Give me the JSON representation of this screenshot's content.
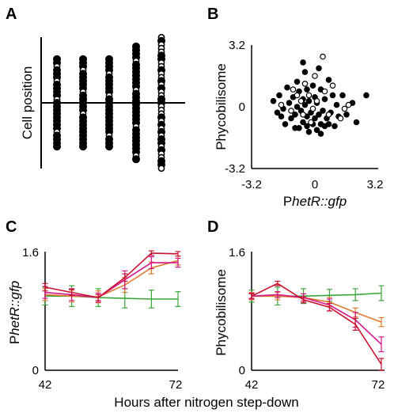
{
  "panels": {
    "a": {
      "letter": "A"
    },
    "b": {
      "letter": "B"
    },
    "c": {
      "letter": "C"
    },
    "d": {
      "letter": "D"
    }
  },
  "shared_xlabel": "Hours after nitrogen step-down",
  "colors": {
    "red": "#c8102e",
    "orange": "#e07a2e",
    "magenta": "#d6168a",
    "green": "#3aa53a",
    "black": "#000000",
    "white": "#ffffff"
  },
  "chart_data": [
    {
      "panel": "A",
      "type": "other",
      "title": "",
      "ylabel": "Cell position",
      "note": "Five vertical filaments of cells, each centered on a horizontal midline; filled = non-fluorescent cell, open = fluorescent cell",
      "filaments": [
        {
          "cells": [
            "f",
            "f",
            "o",
            "f",
            "f",
            "f",
            "o",
            "f",
            "f",
            "f",
            "f",
            "o",
            "f",
            "f",
            "f",
            "f",
            "f",
            "f",
            "f",
            "f",
            "o",
            "f",
            "f",
            "f",
            "f"
          ]
        },
        {
          "cells": [
            "f",
            "f",
            "f",
            "o",
            "f",
            "f",
            "f",
            "f",
            "f",
            "o",
            "f",
            "f",
            "f",
            "f",
            "f",
            "o",
            "f",
            "f",
            "f",
            "f",
            "f",
            "f",
            "f",
            "f",
            "f"
          ]
        },
        {
          "cells": [
            "f",
            "f",
            "f",
            "f",
            "o",
            "f",
            "f",
            "f",
            "f",
            "f",
            "o",
            "f",
            "f",
            "f",
            "f",
            "f",
            "f",
            "f",
            "f",
            "f",
            "f",
            "o",
            "f",
            "f",
            "f"
          ]
        },
        {
          "cells": [
            "f",
            "f",
            "f",
            "f",
            "o",
            "f",
            "f",
            "f",
            "f",
            "f",
            "f",
            "f",
            "o",
            "f",
            "f",
            "f",
            "f",
            "f",
            "f",
            "f",
            "f",
            "f",
            "o",
            "f",
            "f",
            "f",
            "f",
            "f",
            "f",
            "f",
            "o",
            "f"
          ]
        },
        {
          "cells": [
            "o",
            "f",
            "o",
            "o",
            "o",
            "f",
            "f",
            "o",
            "o",
            "f",
            "o",
            "o",
            "f",
            "o",
            "f",
            "o",
            "o",
            "f",
            "f",
            "o",
            "o",
            "o",
            "f",
            "o",
            "f",
            "o",
            "f",
            "o",
            "f",
            "f",
            "o",
            "f",
            "o",
            "o",
            "f",
            "f",
            "o"
          ]
        }
      ]
    },
    {
      "panel": "B",
      "type": "scatter",
      "title": "",
      "xlabel_pre": "P",
      "xlabel_italic": "hetR::gfp",
      "ylabel": "Phycobilisome",
      "xlim": [
        -3.2,
        3.2
      ],
      "ylim": [
        -3.2,
        3.2
      ],
      "xticks": [
        "-3.2",
        "0",
        "3.2"
      ],
      "yticks": [
        "3.2",
        "0",
        "-3.2"
      ],
      "series": [
        {
          "marker": "filled",
          "points": [
            [
              -2.1,
              0.3
            ],
            [
              -1.9,
              -0.3
            ],
            [
              -1.8,
              0.6
            ],
            [
              -1.6,
              -0.1
            ],
            [
              -1.5,
              -0.9
            ],
            [
              -1.4,
              1.0
            ],
            [
              -1.3,
              0.2
            ],
            [
              -1.2,
              -0.6
            ],
            [
              -1.1,
              0.5
            ],
            [
              -1.0,
              -0.4
            ],
            [
              -0.9,
              1.3
            ],
            [
              -0.9,
              0.0
            ],
            [
              -0.8,
              -1.1
            ],
            [
              -0.8,
              0.8
            ],
            [
              -0.7,
              -0.2
            ],
            [
              -0.6,
              0.4
            ],
            [
              -0.6,
              -0.8
            ],
            [
              -0.5,
              1.8
            ],
            [
              -0.5,
              0.1
            ],
            [
              -0.4,
              -0.5
            ],
            [
              -0.4,
              0.9
            ],
            [
              -0.3,
              -1.3
            ],
            [
              -0.3,
              0.3
            ],
            [
              -0.2,
              -0.3
            ],
            [
              -0.1,
              1.1
            ],
            [
              -0.1,
              -0.9
            ],
            [
              0.0,
              0.5
            ],
            [
              0.0,
              -0.6
            ],
            [
              0.1,
              -1.2
            ],
            [
              0.1,
              0.2
            ],
            [
              0.2,
              -0.4
            ],
            [
              0.3,
              0.9
            ],
            [
              0.3,
              -0.9
            ],
            [
              0.4,
              -0.2
            ],
            [
              0.5,
              -1.0
            ],
            [
              0.5,
              0.4
            ],
            [
              0.6,
              -0.6
            ],
            [
              0.7,
              1.4
            ],
            [
              0.8,
              -0.3
            ],
            [
              0.9,
              0.6
            ],
            [
              1.0,
              -1.0
            ],
            [
              1.1,
              0.1
            ],
            [
              1.2,
              -0.5
            ],
            [
              1.4,
              0.6
            ],
            [
              1.6,
              -0.4
            ],
            [
              1.9,
              0.2
            ],
            [
              2.1,
              -0.8
            ],
            [
              2.6,
              0.6
            ],
            [
              -0.6,
              2.3
            ],
            [
              0.2,
              2.0
            ],
            [
              -1.7,
              -0.5
            ],
            [
              -1.0,
              -1.1
            ],
            [
              0.3,
              -1.4
            ],
            [
              0.7,
              -0.9
            ],
            [
              -0.4,
              -1.0
            ]
          ]
        },
        {
          "marker": "open",
          "points": [
            [
              -1.7,
              0.1
            ],
            [
              -1.2,
              -0.2
            ],
            [
              -0.9,
              0.6
            ],
            [
              -0.7,
              0.3
            ],
            [
              -0.6,
              -0.4
            ],
            [
              -0.5,
              1.2
            ],
            [
              -0.3,
              0.6
            ],
            [
              -0.2,
              -0.8
            ],
            [
              0.0,
              1.6
            ],
            [
              0.1,
              0.3
            ],
            [
              0.4,
              2.6
            ],
            [
              0.5,
              0.8
            ],
            [
              0.7,
              -0.4
            ],
            [
              0.9,
              1.1
            ],
            [
              1.3,
              -0.6
            ],
            [
              1.5,
              -0.1
            ],
            [
              1.7,
              0.1
            ],
            [
              -1.1,
              0.9
            ],
            [
              -0.1,
              -0.1
            ]
          ]
        }
      ]
    },
    {
      "panel": "C",
      "type": "line",
      "title": "",
      "xlabel": "",
      "ylabel_pre": "P",
      "ylabel_italic": "hetR::gfp",
      "xlim": [
        42,
        72
      ],
      "ylim": [
        0,
        1.6
      ],
      "xticks": [
        "42",
        "72"
      ],
      "yticks": [
        "1.6",
        "0"
      ],
      "x": [
        42,
        48,
        54,
        60,
        66,
        72
      ],
      "series": [
        {
          "color": "#3aa53a",
          "values": [
            1.0,
            1.0,
            0.98,
            0.97,
            0.96,
            0.96
          ],
          "errors": [
            0.12,
            0.14,
            0.12,
            0.13,
            0.12,
            0.1
          ]
        },
        {
          "color": "#e07a2e",
          "values": [
            1.02,
            1.0,
            0.99,
            1.15,
            1.38,
            1.48
          ],
          "errors": [
            0.08,
            0.08,
            0.08,
            0.1,
            0.08,
            0.06
          ]
        },
        {
          "color": "#d6168a",
          "values": [
            1.05,
            1.02,
            0.98,
            1.22,
            1.45,
            1.45
          ],
          "errors": [
            0.08,
            0.08,
            0.06,
            0.12,
            0.08,
            0.06
          ]
        },
        {
          "color": "#c8102e",
          "values": [
            1.12,
            1.05,
            0.98,
            1.25,
            1.58,
            1.57
          ],
          "errors": [
            0.05,
            0.04,
            0.04,
            0.05,
            0.03,
            0.03
          ]
        }
      ]
    },
    {
      "panel": "D",
      "type": "line",
      "title": "",
      "xlabel": "",
      "ylabel": "Phycobilisome",
      "xlim": [
        42,
        72
      ],
      "ylim": [
        0,
        1.6
      ],
      "xticks": [
        "42",
        "72"
      ],
      "yticks": [
        "1.6",
        "0"
      ],
      "x": [
        42,
        48,
        54,
        60,
        66,
        72
      ],
      "series": [
        {
          "color": "#3aa53a",
          "values": [
            1.0,
            1.0,
            1.0,
            1.01,
            1.02,
            1.04
          ],
          "errors": [
            0.08,
            0.12,
            0.1,
            0.08,
            0.08,
            0.1
          ]
        },
        {
          "color": "#e07a2e",
          "values": [
            1.0,
            1.0,
            0.98,
            0.92,
            0.78,
            0.65
          ],
          "errors": [
            0.05,
            0.05,
            0.05,
            0.06,
            0.06,
            0.06
          ]
        },
        {
          "color": "#d6168a",
          "values": [
            1.0,
            1.02,
            0.98,
            0.88,
            0.68,
            0.35
          ],
          "errors": [
            0.04,
            0.04,
            0.05,
            0.08,
            0.1,
            0.1
          ]
        },
        {
          "color": "#c8102e",
          "values": [
            1.0,
            1.17,
            0.95,
            0.85,
            0.62,
            0.08
          ],
          "errors": [
            0.03,
            0.03,
            0.04,
            0.05,
            0.08,
            0.08
          ]
        }
      ]
    }
  ]
}
